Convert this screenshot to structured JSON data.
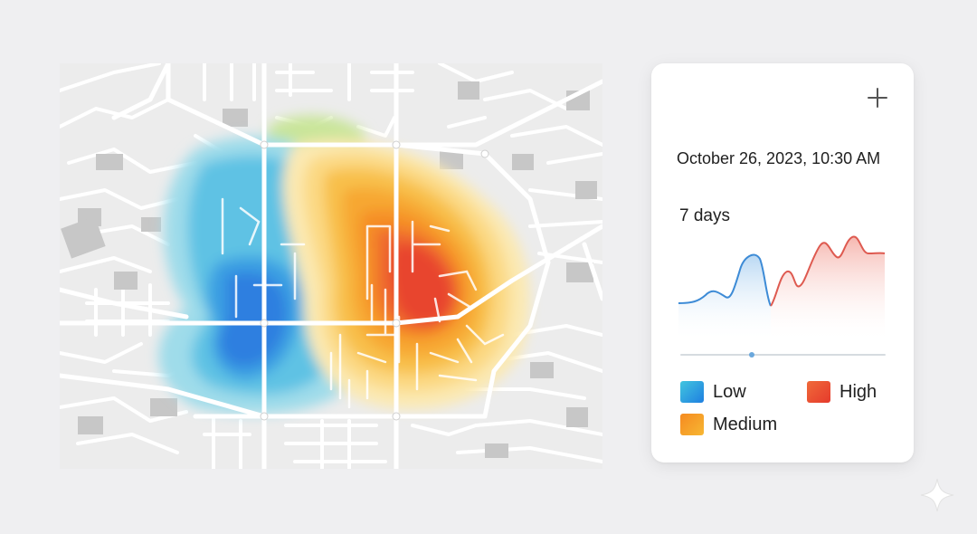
{
  "panel": {
    "datetime": "October 26, 2023, 10:30 AM",
    "range_label": "7 days",
    "slider_value": 0.35,
    "legend": [
      {
        "label": "Low",
        "colors": [
          "#1f7fe0",
          "#41c5df"
        ]
      },
      {
        "label": "High",
        "colors": [
          "#e53a2c",
          "#f06a3a"
        ]
      },
      {
        "label": "Medium",
        "colors": [
          "#f7b733",
          "#f58a20"
        ]
      }
    ]
  },
  "heat_colors": {
    "cool": [
      "#cfe8f0",
      "#9fdcea",
      "#5ec2e4",
      "#3a9fe2",
      "#2f7fe0"
    ],
    "mild": [
      "#e8efc0",
      "#c9e59a"
    ],
    "warm": [
      "#fbe9b2",
      "#fbd984",
      "#f8c04c",
      "#f7a733",
      "#f58e28",
      "#ef6b2d",
      "#e8452e"
    ]
  }
}
